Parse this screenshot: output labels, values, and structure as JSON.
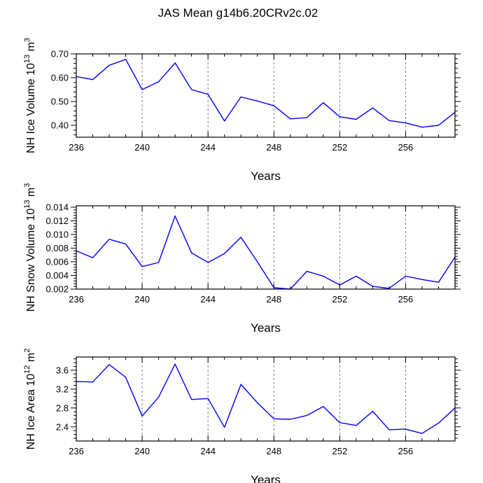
{
  "title": "JAS Mean g14b6.20CRv2c.02",
  "colors": {
    "line": "#0000ff",
    "axis": "#000000",
    "grid": "#808080"
  },
  "chart_data": [
    {
      "type": "line",
      "ylabel_main": "NH Ice Volume 10",
      "ylabel_exp": "13",
      "ylabel_unit": " m",
      "ylabel_unit_exp": "3",
      "xlabel": "Years",
      "xlim": [
        236,
        259
      ],
      "ylim": [
        0.35,
        0.7
      ],
      "xticks": [
        236,
        240,
        244,
        248,
        252,
        256
      ],
      "xtick_labels": [
        "236",
        "240",
        "244",
        "248",
        "252",
        "256"
      ],
      "yticks": [
        0.4,
        0.5,
        0.6,
        0.7
      ],
      "ytick_labels": [
        "0.40",
        "0.50",
        "0.60",
        "0.70"
      ],
      "yminor_step": 0.02,
      "grid_x": [
        240,
        244,
        248,
        252,
        256
      ],
      "x": [
        236,
        237,
        238,
        239,
        240,
        241,
        242,
        243,
        244,
        245,
        246,
        247,
        248,
        249,
        250,
        251,
        252,
        253,
        254,
        255,
        256,
        257,
        258,
        259
      ],
      "values": [
        0.605,
        0.592,
        0.652,
        0.677,
        0.55,
        0.583,
        0.662,
        0.55,
        0.53,
        0.418,
        0.519,
        0.502,
        0.482,
        0.427,
        0.432,
        0.495,
        0.436,
        0.425,
        0.473,
        0.42,
        0.41,
        0.392,
        0.4,
        0.455
      ]
    },
    {
      "type": "line",
      "ylabel_main": "NH Snow Volume 10",
      "ylabel_exp": "13",
      "ylabel_unit": " m",
      "ylabel_unit_exp": "3",
      "xlabel": "Years",
      "xlim": [
        236,
        259
      ],
      "ylim": [
        0.002,
        0.0142
      ],
      "xticks": [
        236,
        240,
        244,
        248,
        252,
        256
      ],
      "xtick_labels": [
        "236",
        "240",
        "244",
        "248",
        "252",
        "256"
      ],
      "yticks": [
        0.002,
        0.004,
        0.006,
        0.008,
        0.01,
        0.012,
        0.014
      ],
      "ytick_labels": [
        "0.002",
        "0.004",
        "0.006",
        "0.008",
        "0.010",
        "0.012",
        "0.014"
      ],
      "yminor_step": 0.0004,
      "grid_x": [
        240,
        244,
        248,
        252,
        256
      ],
      "x": [
        236,
        237,
        238,
        239,
        240,
        241,
        242,
        243,
        244,
        245,
        246,
        247,
        248,
        249,
        250,
        251,
        252,
        253,
        254,
        255,
        256,
        257,
        258,
        259
      ],
      "values": [
        0.0076,
        0.0066,
        0.0093,
        0.0086,
        0.0053,
        0.0059,
        0.0127,
        0.0073,
        0.0059,
        0.0072,
        0.0096,
        0.006,
        0.0022,
        0.002,
        0.0046,
        0.0039,
        0.0026,
        0.0039,
        0.0024,
        0.0021,
        0.0039,
        0.0034,
        0.003,
        0.0067
      ]
    },
    {
      "type": "line",
      "ylabel_main": "NH Ice Area 10",
      "ylabel_exp": "12",
      "ylabel_unit": " m",
      "ylabel_unit_exp": "2",
      "xlabel": "Years",
      "xlim": [
        236,
        259
      ],
      "ylim": [
        2.1,
        3.88
      ],
      "xticks": [
        236,
        240,
        244,
        248,
        252,
        256
      ],
      "xtick_labels": [
        "236",
        "240",
        "244",
        "248",
        "252",
        "256"
      ],
      "yticks": [
        2.4,
        2.8,
        3.2,
        3.6
      ],
      "ytick_labels": [
        "2.4",
        "2.8",
        "3.2",
        "3.6"
      ],
      "yminor_step": 0.08,
      "grid_x": [
        240,
        244,
        248,
        252,
        256
      ],
      "x": [
        236,
        237,
        238,
        239,
        240,
        241,
        242,
        243,
        244,
        245,
        246,
        247,
        248,
        249,
        250,
        251,
        252,
        253,
        254,
        255,
        256,
        257,
        258,
        259
      ],
      "values": [
        3.36,
        3.35,
        3.72,
        3.45,
        2.63,
        3.03,
        3.73,
        2.98,
        3.0,
        2.39,
        3.3,
        2.91,
        2.57,
        2.56,
        2.64,
        2.83,
        2.49,
        2.43,
        2.73,
        2.34,
        2.35,
        2.26,
        2.48,
        2.8
      ]
    }
  ]
}
